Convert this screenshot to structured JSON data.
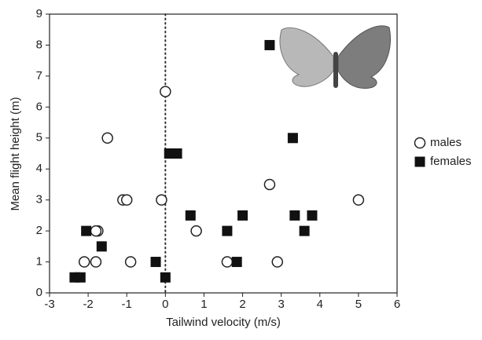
{
  "chart_data": {
    "type": "scatter",
    "xlabel": "Tailwind velocity (m/s)",
    "ylabel": "Mean flight height (m)",
    "xlim": [
      -3,
      6
    ],
    "ylim": [
      0,
      9
    ],
    "xticks": [
      -3,
      -2,
      -1,
      0,
      1,
      2,
      3,
      4,
      5,
      6
    ],
    "yticks": [
      0,
      1,
      2,
      3,
      4,
      5,
      6,
      7,
      8,
      9
    ],
    "vline": 0,
    "grid": false,
    "legend": "right",
    "series": [
      {
        "name": "males",
        "color": "#222",
        "marker": "open-circle",
        "x": [
          -2.1,
          -1.75,
          -1.8,
          -1.8,
          -0.9,
          -1.5,
          -1.1,
          -1.0,
          -0.1,
          0,
          0.8,
          1.6,
          2.9,
          2.7,
          5
        ],
        "values": [
          1,
          2,
          2,
          1,
          1,
          5,
          3,
          3,
          3,
          6.5,
          2,
          1,
          1,
          3.5,
          3
        ]
      },
      {
        "name": "females",
        "color": "#111",
        "marker": "filled-square",
        "x": [
          -2.35,
          -2.2,
          -2.05,
          -1.65,
          -0.25,
          0,
          0.1,
          0.3,
          0.65,
          1.6,
          1.85,
          2.0,
          2.7,
          3.3,
          3.35,
          3.6,
          3.8
        ],
        "values": [
          0.5,
          0.5,
          2,
          1.5,
          1,
          0.5,
          4.5,
          4.5,
          2.5,
          2,
          1,
          2.5,
          8,
          5,
          2.5,
          2,
          2.5
        ]
      }
    ]
  }
}
